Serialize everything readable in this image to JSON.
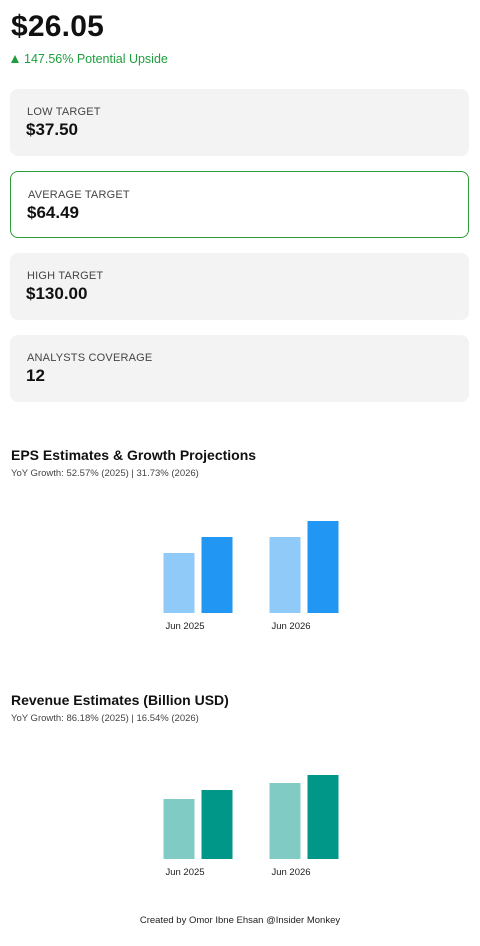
{
  "header": {
    "price": "$26.05",
    "upside_text": "147.56% Potential Upside"
  },
  "cards": [
    {
      "label": "LOW TARGET",
      "value": "$37.50",
      "highlight": false
    },
    {
      "label": "AVERAGE TARGET",
      "value": "$64.49",
      "highlight": true
    },
    {
      "label": "HIGH TARGET",
      "value": "$130.00",
      "highlight": false
    },
    {
      "label": "ANALYSTS COVERAGE",
      "value": "12",
      "highlight": false
    }
  ],
  "eps": {
    "title": "EPS Estimates & Growth Projections",
    "subtitle": "YoY Growth: 52.57% (2025) | 31.73% (2026)"
  },
  "revenue": {
    "title": "Revenue Estimates (Billion USD)",
    "subtitle": "YoY Growth: 86.18% (2025) | 16.54% (2026)"
  },
  "chart_data": [
    {
      "type": "bar",
      "title": "EPS Estimates & Growth Projections",
      "categories": [
        "Jun 2025",
        "Jun 2026"
      ],
      "series": [
        {
          "values": [
            0.6,
            0.76
          ],
          "color": "#90caf9"
        },
        {
          "values": [
            0.76,
            0.92
          ],
          "color": "#2196f3"
        }
      ],
      "ylim": [
        0,
        1
      ],
      "grid": false
    },
    {
      "type": "bar",
      "title": "Revenue Estimates (Billion USD)",
      "categories": [
        "Jun 2025",
        "Jun 2026"
      ],
      "series": [
        {
          "values": [
            0.6,
            0.76
          ],
          "color": "#80cbc4"
        },
        {
          "values": [
            0.69,
            0.84
          ],
          "color": "#009688"
        }
      ],
      "ylim": [
        0,
        1
      ],
      "grid": false
    }
  ],
  "footer": "Created by Omor Ibne Ehsan @Insider Monkey"
}
